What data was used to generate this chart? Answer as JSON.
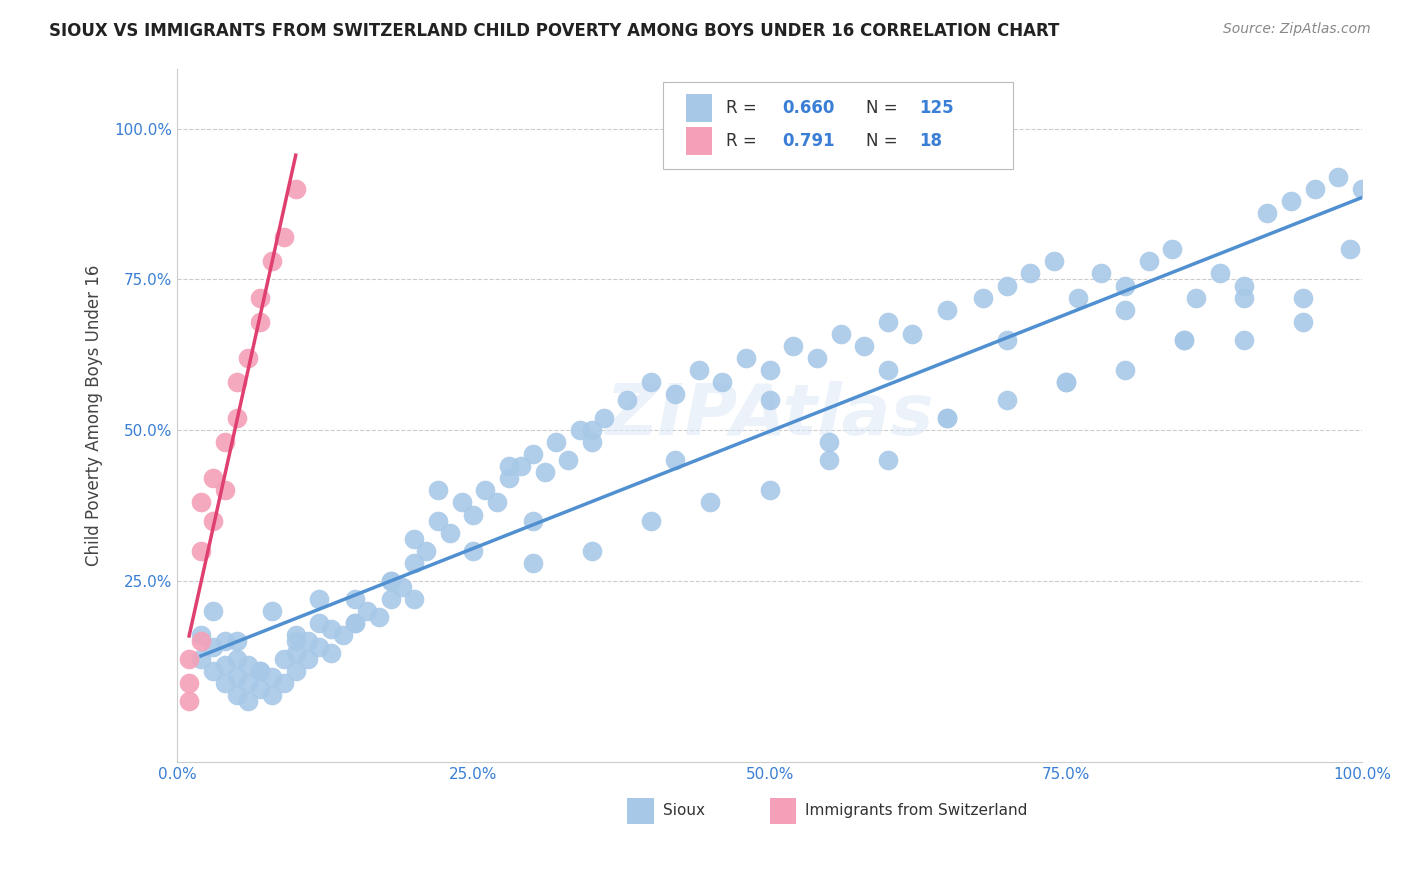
{
  "title": "SIOUX VS IMMIGRANTS FROM SWITZERLAND CHILD POVERTY AMONG BOYS UNDER 16 CORRELATION CHART",
  "source": "Source: ZipAtlas.com",
  "ylabel": "Child Poverty Among Boys Under 16",
  "watermark": "ZIPAtlas",
  "xlim": [
    0.0,
    1.0
  ],
  "ylim": [
    -0.05,
    1.1
  ],
  "xtick_labels": [
    "0.0%",
    "25.0%",
    "50.0%",
    "75.0%",
    "100.0%"
  ],
  "xtick_vals": [
    0.0,
    0.25,
    0.5,
    0.75,
    1.0
  ],
  "ytick_labels": [
    "25.0%",
    "50.0%",
    "75.0%",
    "100.0%"
  ],
  "ytick_vals": [
    0.25,
    0.5,
    0.75,
    1.0
  ],
  "sioux_R": 0.66,
  "sioux_N": 125,
  "swiss_R": 0.791,
  "swiss_N": 18,
  "sioux_color": "#a8c8e8",
  "swiss_color": "#f4a0b8",
  "sioux_line_color": "#5090d0",
  "swiss_line_color": "#e04070",
  "title_color": "#222222",
  "legend_R_color": "#3a7fd5",
  "legend_label_sioux": "Sioux",
  "legend_label_swiss": "Immigrants from Switzerland",
  "sioux_x": [
    0.02,
    0.02,
    0.03,
    0.03,
    0.03,
    0.04,
    0.04,
    0.04,
    0.05,
    0.05,
    0.05,
    0.05,
    0.06,
    0.06,
    0.06,
    0.07,
    0.07,
    0.08,
    0.08,
    0.09,
    0.09,
    0.1,
    0.1,
    0.1,
    0.11,
    0.11,
    0.12,
    0.12,
    0.13,
    0.13,
    0.14,
    0.15,
    0.15,
    0.16,
    0.17,
    0.18,
    0.18,
    0.19,
    0.2,
    0.2,
    0.21,
    0.22,
    0.23,
    0.24,
    0.25,
    0.26,
    0.27,
    0.28,
    0.29,
    0.3,
    0.31,
    0.32,
    0.33,
    0.34,
    0.35,
    0.36,
    0.38,
    0.4,
    0.42,
    0.44,
    0.46,
    0.48,
    0.5,
    0.52,
    0.54,
    0.56,
    0.58,
    0.6,
    0.62,
    0.65,
    0.68,
    0.7,
    0.72,
    0.74,
    0.76,
    0.78,
    0.8,
    0.82,
    0.84,
    0.86,
    0.88,
    0.9,
    0.92,
    0.94,
    0.96,
    0.98,
    1.0,
    0.35,
    0.42,
    0.5,
    0.55,
    0.6,
    0.65,
    0.7,
    0.75,
    0.8,
    0.85,
    0.9,
    0.95,
    0.99,
    0.3,
    0.4,
    0.5,
    0.6,
    0.7,
    0.8,
    0.9,
    0.35,
    0.45,
    0.55,
    0.65,
    0.75,
    0.85,
    0.95,
    0.07,
    0.08,
    0.1,
    0.12,
    0.15,
    0.18,
    0.2,
    0.25,
    0.3,
    0.22,
    0.28
  ],
  "sioux_y": [
    0.12,
    0.16,
    0.1,
    0.14,
    0.2,
    0.08,
    0.11,
    0.15,
    0.06,
    0.09,
    0.12,
    0.15,
    0.05,
    0.08,
    0.11,
    0.07,
    0.1,
    0.06,
    0.09,
    0.08,
    0.12,
    0.1,
    0.13,
    0.16,
    0.12,
    0.15,
    0.14,
    0.18,
    0.13,
    0.17,
    0.16,
    0.18,
    0.22,
    0.2,
    0.19,
    0.22,
    0.25,
    0.24,
    0.28,
    0.32,
    0.3,
    0.35,
    0.33,
    0.38,
    0.36,
    0.4,
    0.38,
    0.42,
    0.44,
    0.46,
    0.43,
    0.48,
    0.45,
    0.5,
    0.48,
    0.52,
    0.55,
    0.58,
    0.56,
    0.6,
    0.58,
    0.62,
    0.6,
    0.64,
    0.62,
    0.66,
    0.64,
    0.68,
    0.66,
    0.7,
    0.72,
    0.74,
    0.76,
    0.78,
    0.72,
    0.76,
    0.74,
    0.78,
    0.8,
    0.72,
    0.76,
    0.74,
    0.86,
    0.88,
    0.9,
    0.92,
    0.9,
    0.5,
    0.45,
    0.55,
    0.48,
    0.6,
    0.52,
    0.65,
    0.58,
    0.7,
    0.65,
    0.72,
    0.68,
    0.8,
    0.28,
    0.35,
    0.4,
    0.45,
    0.55,
    0.6,
    0.65,
    0.3,
    0.38,
    0.45,
    0.52,
    0.58,
    0.65,
    0.72,
    0.1,
    0.2,
    0.15,
    0.22,
    0.18,
    0.25,
    0.22,
    0.3,
    0.35,
    0.4,
    0.44
  ],
  "swiss_x": [
    0.01,
    0.01,
    0.01,
    0.02,
    0.02,
    0.02,
    0.03,
    0.03,
    0.04,
    0.04,
    0.05,
    0.05,
    0.06,
    0.07,
    0.07,
    0.08,
    0.09,
    0.1
  ],
  "swiss_y": [
    0.05,
    0.08,
    0.12,
    0.15,
    0.3,
    0.38,
    0.35,
    0.42,
    0.4,
    0.48,
    0.52,
    0.58,
    0.62,
    0.68,
    0.72,
    0.78,
    0.82,
    0.9
  ],
  "background_color": "#ffffff",
  "grid_color": "#cccccc"
}
